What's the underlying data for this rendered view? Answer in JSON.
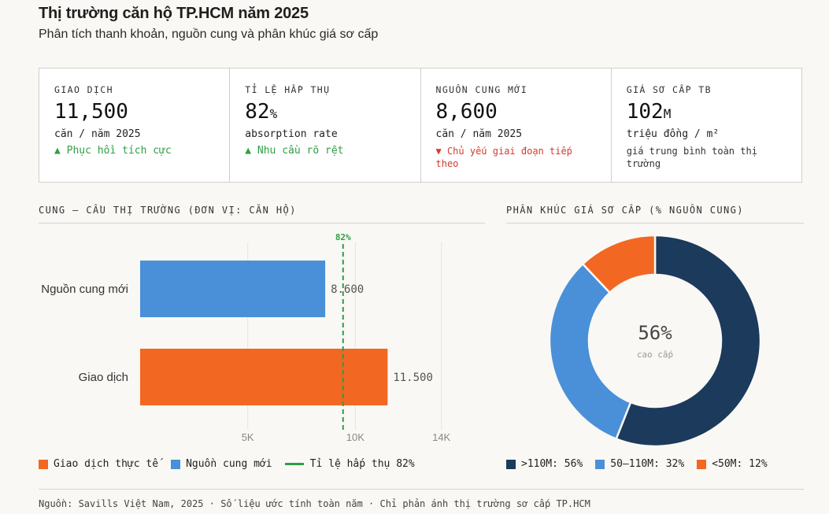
{
  "header": {
    "title": "Thị trường căn hộ TP.HCM năm 2025",
    "subtitle": "Phân tích thanh khoản, nguồn cung và phân khúc giá sơ cấp"
  },
  "kpis": [
    {
      "label": "GIAO DỊCH",
      "value": "11,500",
      "unit": "",
      "sub": "căn / năm 2025",
      "note": "▲ Phục hồi tích cực",
      "tone": "up"
    },
    {
      "label": "TỈ LỆ HẤP THỤ",
      "value": "82",
      "unit": "%",
      "sub": "absorption rate",
      "note": "▲ Nhu cầu rõ rệt",
      "tone": "up"
    },
    {
      "label": "NGUỒN CUNG MỚI",
      "value": "8,600",
      "unit": "",
      "sub": "căn / năm 2025",
      "note": "▼ Chủ yếu giai đoạn tiếp theo",
      "tone": "down"
    },
    {
      "label": "GIÁ SƠ CẤP TB",
      "value": "102",
      "unit": "M",
      "sub": "triệu đồng / m²",
      "note": "giá trung bình toàn thị trường",
      "tone": "neutral"
    }
  ],
  "bar_section_title": "CUNG – CẦU THỊ TRƯỜNG (ĐƠN VỊ: CĂN HỘ)",
  "pie_section_title": "PHÂN KHÚC GIÁ SƠ CẤP (% NGUỒN CUNG)",
  "chart_data": [
    {
      "type": "bar",
      "orientation": "horizontal",
      "categories": [
        "Nguồn cung mới",
        "Giao dịch"
      ],
      "values": [
        8600,
        11500
      ],
      "value_labels": [
        "8.600",
        "11.500"
      ],
      "colors": [
        "#4a90d9",
        "#f26722"
      ],
      "xlim": [
        0,
        15000
      ],
      "xticks": [
        5000,
        10000,
        14000
      ],
      "xtick_labels": [
        "5K",
        "10K",
        "14K"
      ],
      "reference_line": {
        "value": 9430,
        "label": "82%",
        "color": "#2f9e44"
      },
      "legend": [
        {
          "label": "Giao dịch thực tế",
          "color": "#f26722",
          "kind": "box"
        },
        {
          "label": "Nguồn cung mới",
          "color": "#4a90d9",
          "kind": "box"
        },
        {
          "label": "Tỉ lệ hấp thụ 82%",
          "color": "#2f9e44",
          "kind": "line"
        }
      ]
    },
    {
      "type": "pie",
      "donut": true,
      "categories": [
        ">110M",
        "50–110M",
        "<50M"
      ],
      "values": [
        56,
        32,
        12
      ],
      "colors": [
        "#1b3a5c",
        "#4a90d9",
        "#f26722"
      ],
      "center_value": "56%",
      "center_label": "cao cấp",
      "legend_labels": [
        ">110M: 56%",
        "50–110M: 32%",
        "<50M: 12%"
      ]
    }
  ],
  "footer": "Nguồn: Savills Việt Nam, 2025 · Số liệu ước tính toàn năm · Chỉ phản ánh thị trường sơ cấp TP.HCM"
}
